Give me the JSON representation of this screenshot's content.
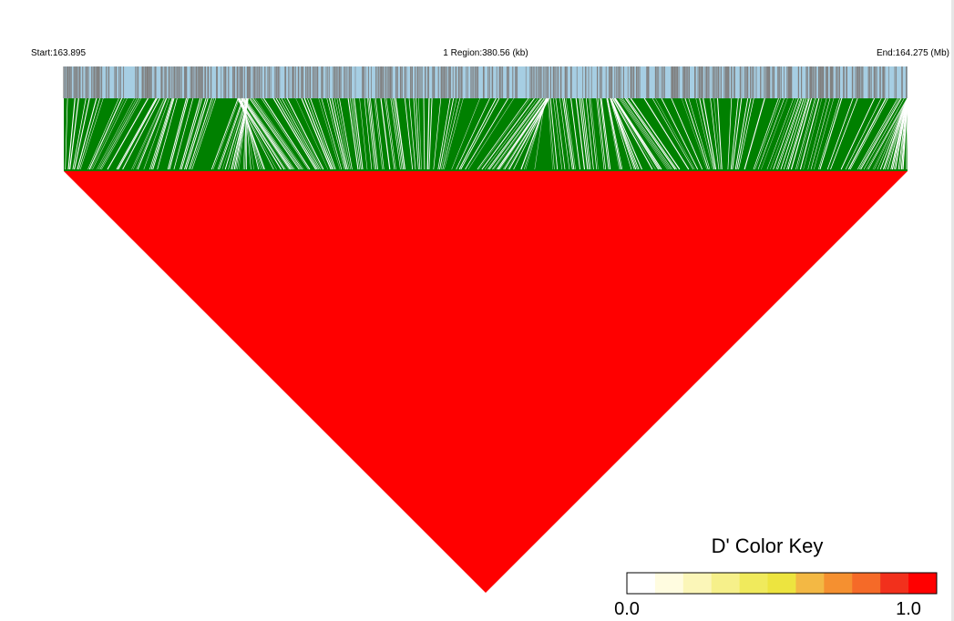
{
  "header": {
    "start_label": "Start:163.895",
    "region_label": "1 Region:380.56 (kb)",
    "end_label": "End:164.275 (Mb)"
  },
  "chart_data": {
    "type": "heatmap",
    "description_type": "LD heatmap",
    "region": {
      "start_mb": 163.895,
      "end_mb": 164.275,
      "length_kb": 380.56
    },
    "heatmap_color": "#ff0000",
    "uniform_d_prime": 1.0,
    "snp_track_colors": {
      "background": "#a6cee3",
      "snp_tick": "#808080",
      "connector_fill": "#008000",
      "connector_gap": "#ffffff"
    },
    "color_key": {
      "title": "D' Color Key",
      "min_label": "0.0",
      "max_label": "1.0",
      "colors": [
        "#ffffff",
        "#fffce0",
        "#fbf6b8",
        "#f6f08a",
        "#f0ea5c",
        "#ede43f",
        "#f3b844",
        "#f59030",
        "#f56a28",
        "#f2301c",
        "#ff0000"
      ]
    }
  }
}
